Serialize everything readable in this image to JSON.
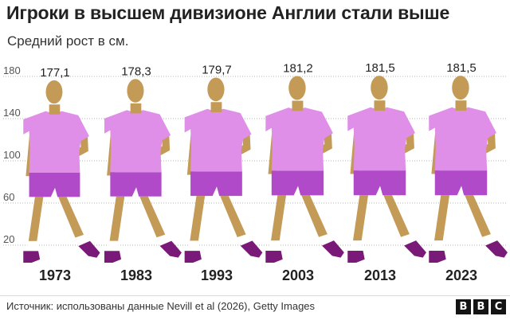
{
  "title": "Игроки в высшем дивизионе Англии стали выше",
  "subtitle": "Средний рост в см.",
  "source": "Источник: использованы данные Nevill et al (2026), Getty Images",
  "logo": [
    "B",
    "B",
    "C"
  ],
  "colors": {
    "skin": "#c49a57",
    "shirt": "#e08fe8",
    "shorts": "#b04ac9",
    "sock": "#ffffff",
    "boot": "#7a1a78",
    "grid": "#b5b5b5",
    "text": "#222222"
  },
  "chart_data": {
    "type": "bar",
    "title": "Игроки в высшем дивизионе Англии стали выше",
    "subtitle": "Средний рост в см.",
    "categories": [
      "1973",
      "1983",
      "1993",
      "2003",
      "2013",
      "2023"
    ],
    "values": [
      177.1,
      178.3,
      179.7,
      181.2,
      181.5,
      181.5
    ],
    "value_labels": [
      "177,1",
      "178,3",
      "179,7",
      "181,2",
      "181,5",
      "181,5"
    ],
    "y_ticks": [
      20,
      60,
      100,
      140,
      180
    ],
    "ylim": [
      0,
      180
    ],
    "grid": true,
    "legend": "none",
    "mark_style": "player-figures"
  }
}
